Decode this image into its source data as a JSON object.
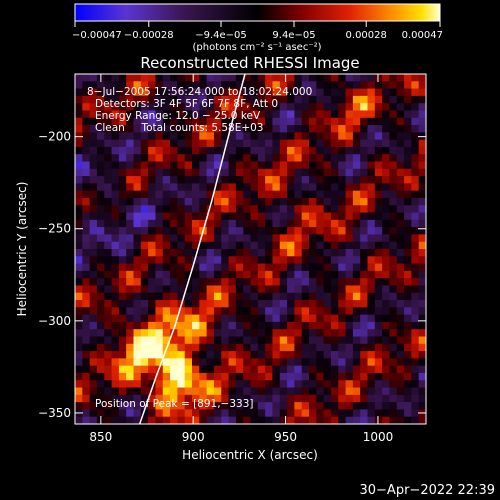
{
  "chart_data": {
    "type": "heatmap",
    "title": "Reconstructed RHESSI Image",
    "xlabel": "Heliocentric X (arcsec)",
    "ylabel": "Heliocentric Y (arcsec)",
    "xlim": [
      836,
      1026
    ],
    "ylim": [
      -356,
      -166
    ],
    "x_ticks": [
      850,
      900,
      950,
      1000
    ],
    "y_ticks": [
      -200,
      -250,
      -300,
      -350
    ],
    "x_tick_labels": [
      "850",
      "900",
      "950",
      "1000"
    ],
    "y_tick_labels": [
      "−200",
      "−250",
      "−300",
      "−350"
    ],
    "colorbar": {
      "min": -0.00047,
      "max": 0.00047,
      "ticks": [
        -0.00047,
        -0.00028,
        -9.4e-05,
        9.4e-05,
        0.00028,
        0.00047
      ],
      "tick_labels": [
        "−0.00047",
        "−0.00028",
        "−9.4e−05",
        "9.4e−05",
        "0.00028",
        "0.00047"
      ],
      "units_label": "(photons cm⁻² s⁻¹ asec⁻²)",
      "colors": [
        "#0000ff",
        "#6633cc",
        "#2a0d3a",
        "#000000",
        "#7a0000",
        "#e02000",
        "#ff8800",
        "#ffd000",
        "#ffffc0"
      ]
    },
    "annotations": {
      "time_range": "8−Jul−2005 17:56:24.000 to 18:02:24.000",
      "detectors": "Detectors: 3F 4F 5F 6F 7F 8F, Att 0",
      "energy_range": "Energy Range: 12.0 − 25.0 keV",
      "clean_line": "Clean     Total counts: 5.58E+03",
      "peak_position": "Position of Peak = [891,−333]"
    },
    "peak": {
      "x": 891,
      "y": -333
    },
    "limb_line": {
      "x": [
        871,
        880,
        890,
        900,
        910,
        920,
        928
      ],
      "y": [
        -356,
        -330,
        -303,
        -270,
        -235,
        -196,
        -166
      ]
    }
  },
  "footer": {
    "timestamp": "30−Apr−2022 22:39"
  }
}
